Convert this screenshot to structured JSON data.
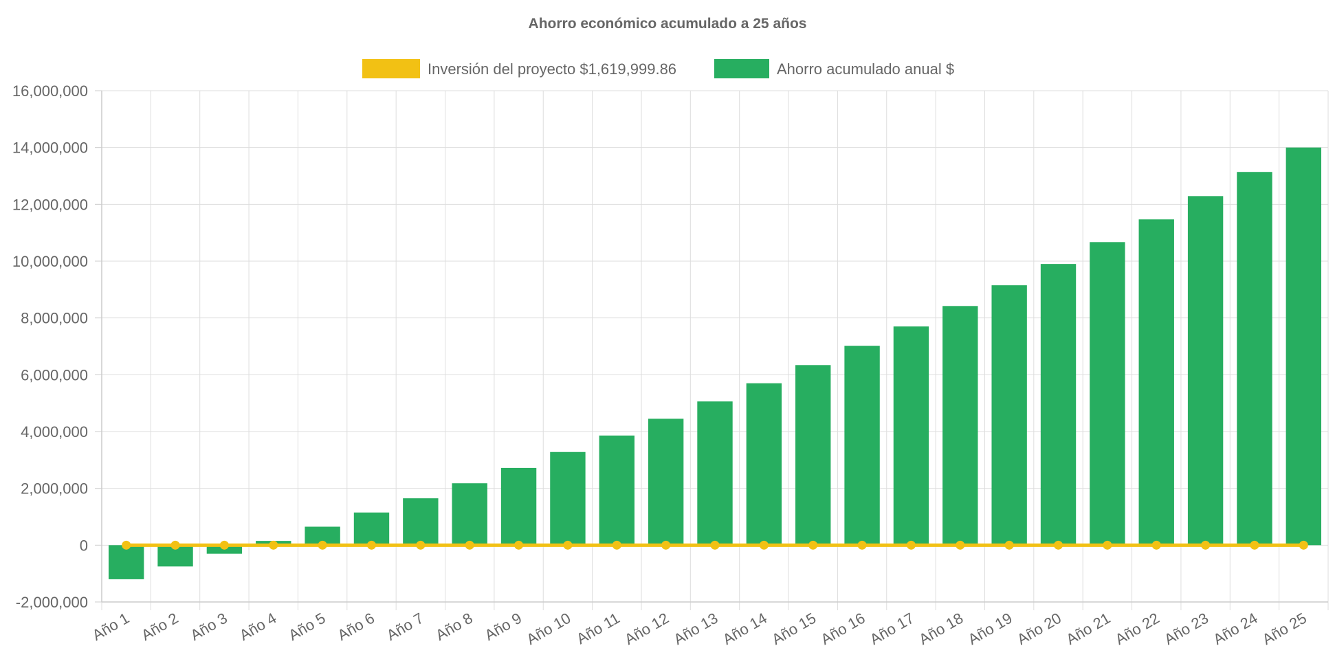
{
  "chart_data": {
    "type": "bar",
    "title": "Ahorro económico acumulado a 25 años",
    "categories": [
      "Año 1",
      "Año 2",
      "Año 3",
      "Año 4",
      "Año 5",
      "Año 6",
      "Año 7",
      "Año 8",
      "Año 9",
      "Año 10",
      "Año 11",
      "Año 12",
      "Año 13",
      "Año 14",
      "Año 15",
      "Año 16",
      "Año 17",
      "Año 18",
      "Año 19",
      "Año 20",
      "Año 21",
      "Año 22",
      "Año 23",
      "Año 24",
      "Año 25"
    ],
    "series": [
      {
        "name": "Inversión del proyecto $1,619,999.86",
        "type": "line",
        "color": "#f2c114",
        "values": [
          0,
          0,
          0,
          0,
          0,
          0,
          0,
          0,
          0,
          0,
          0,
          0,
          0,
          0,
          0,
          0,
          0,
          0,
          0,
          0,
          0,
          0,
          0,
          0,
          0
        ]
      },
      {
        "name": "Ahorro acumulado anual $",
        "type": "bar",
        "color": "#27ae60",
        "values": [
          -1200000,
          -750000,
          -300000,
          150000,
          650000,
          1150000,
          1650000,
          2180000,
          2720000,
          3280000,
          3860000,
          4450000,
          5060000,
          5700000,
          6340000,
          7020000,
          7700000,
          8420000,
          9150000,
          9900000,
          10670000,
          11470000,
          12290000,
          13140000,
          14000000
        ]
      }
    ],
    "ylim": [
      -2000000,
      16000000
    ],
    "yticks": [
      {
        "value": 16000000,
        "label": "16,000,000"
      },
      {
        "value": 14000000,
        "label": "14,000,000"
      },
      {
        "value": 12000000,
        "label": "12,000,000"
      },
      {
        "value": 10000000,
        "label": "10,000,000"
      },
      {
        "value": 8000000,
        "label": "8,000,000"
      },
      {
        "value": 6000000,
        "label": "6,000,000"
      },
      {
        "value": 4000000,
        "label": "4,000,000"
      },
      {
        "value": 2000000,
        "label": "2,000,000"
      },
      {
        "value": 0,
        "label": "0"
      },
      {
        "value": -2000000,
        "label": "-2,000,000"
      }
    ],
    "grid": true,
    "legend": "top"
  }
}
